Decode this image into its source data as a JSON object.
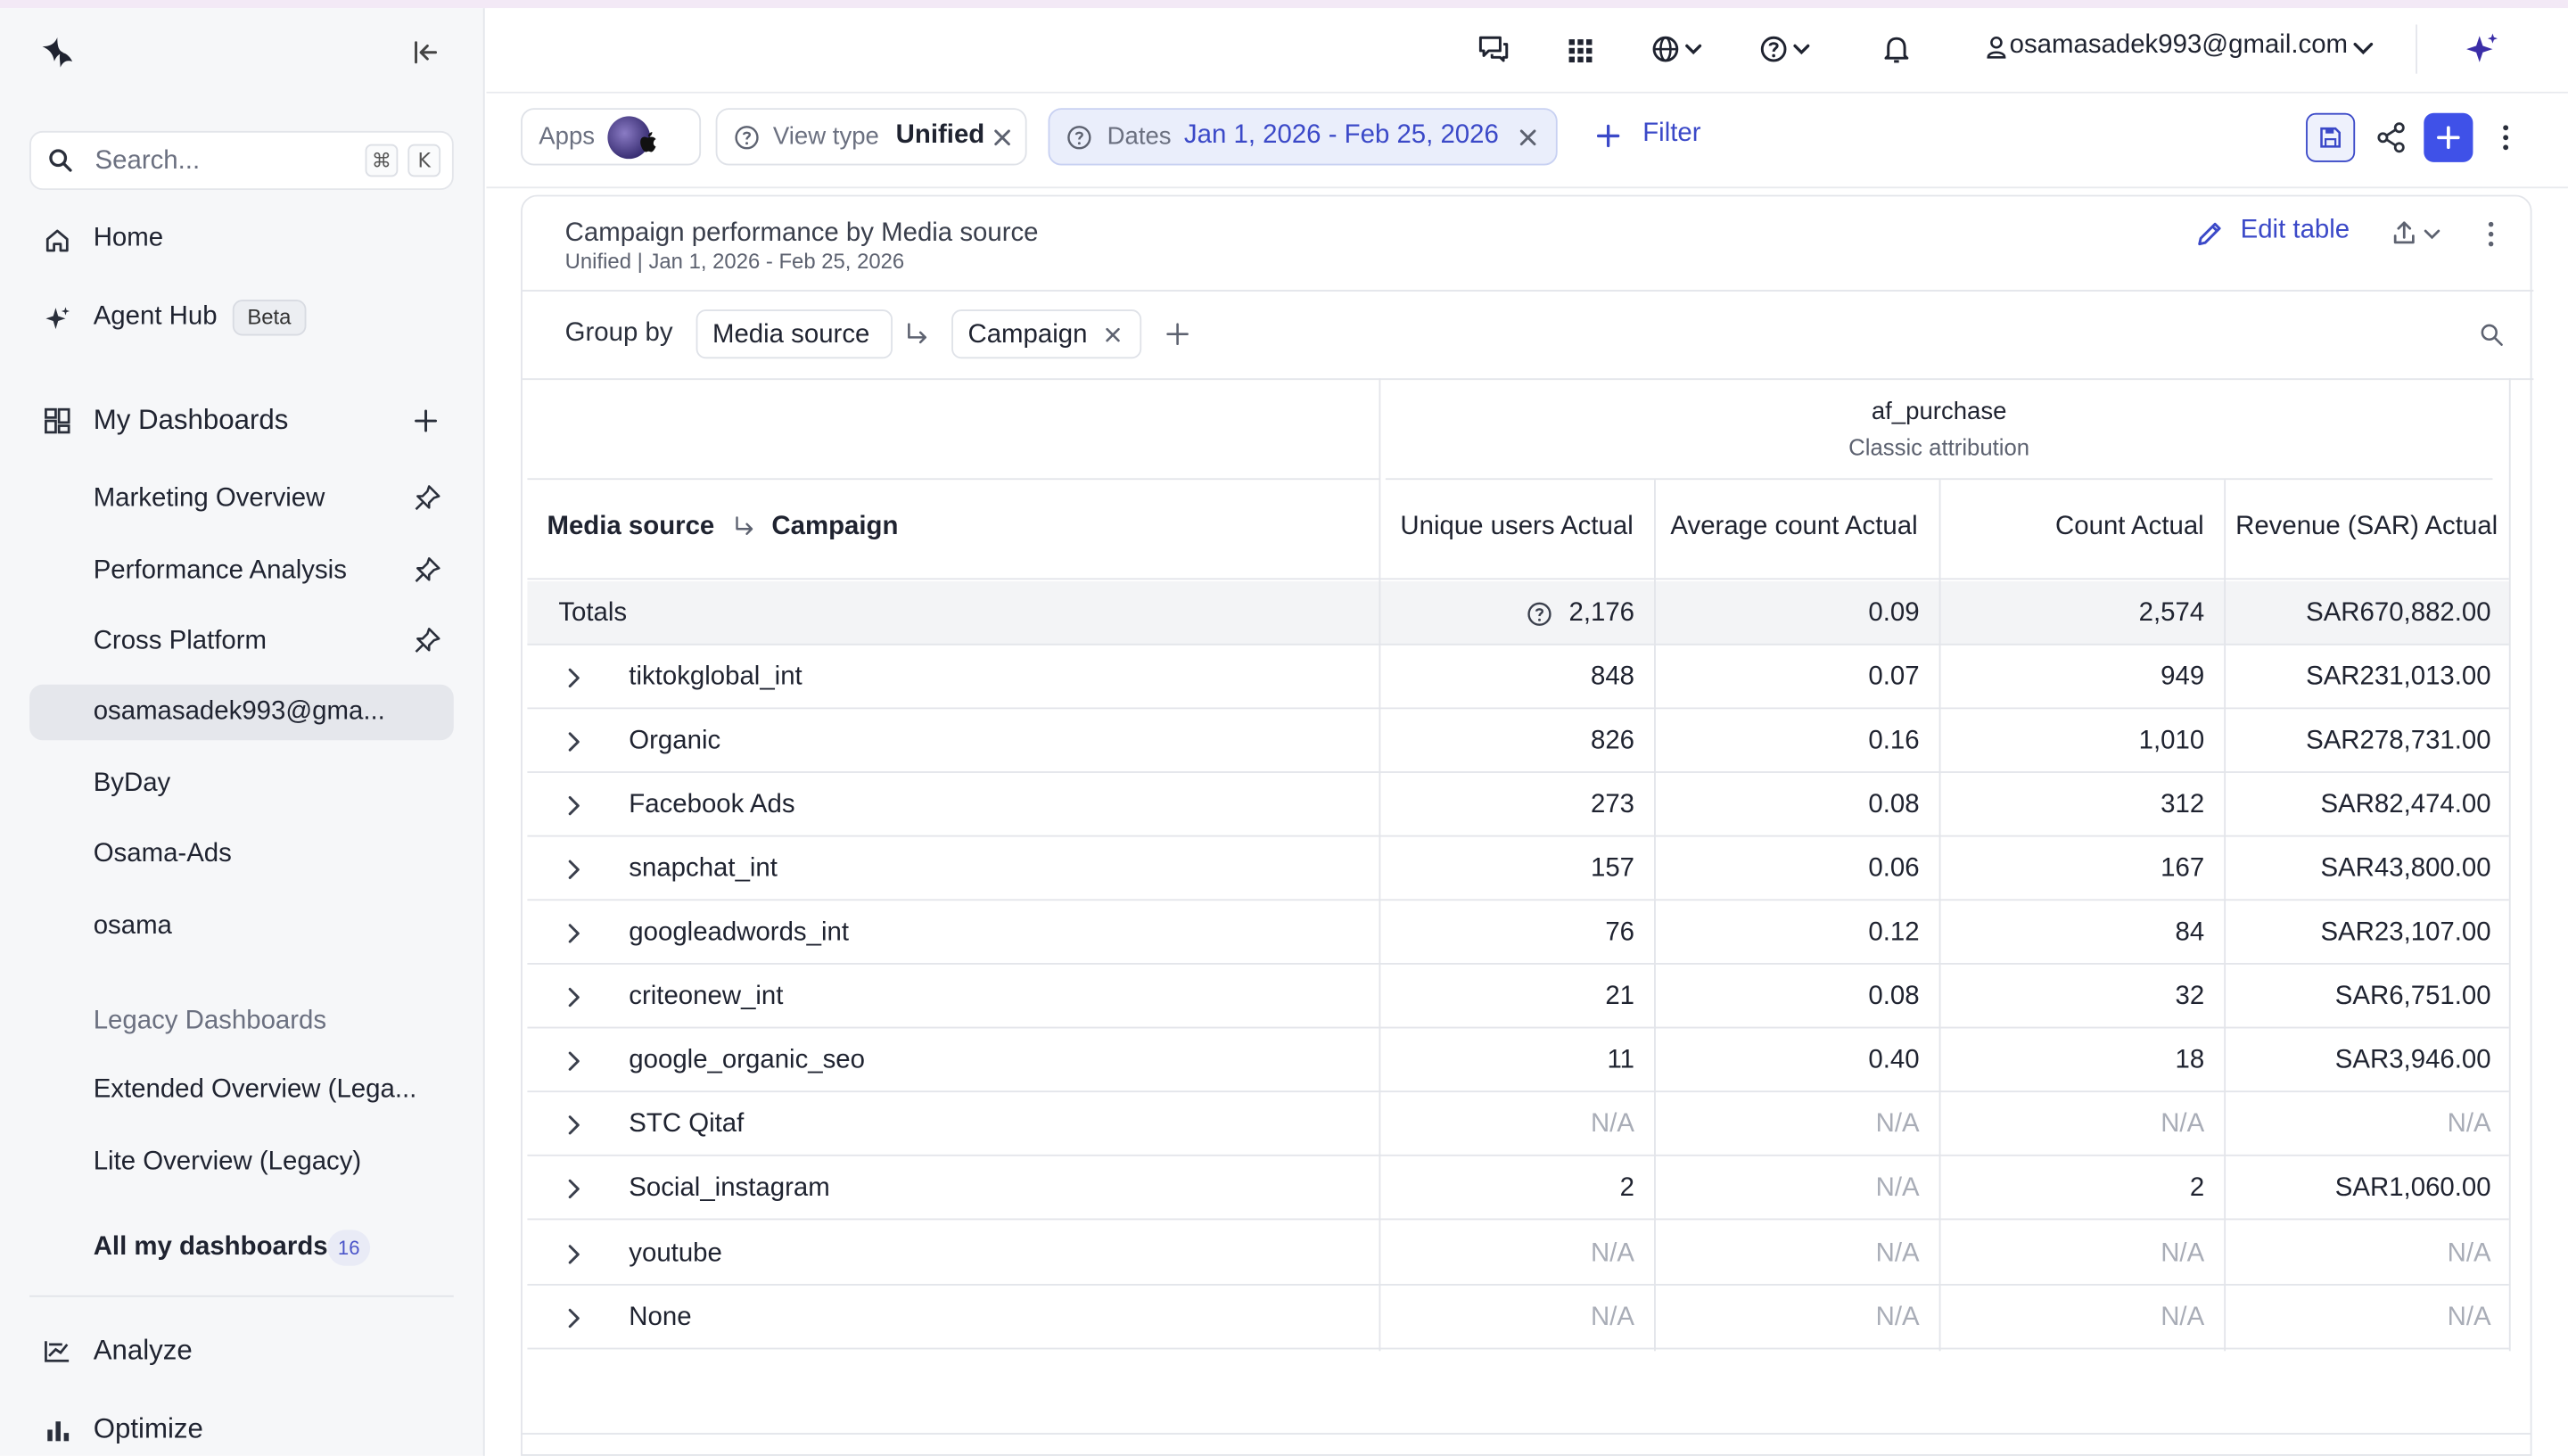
{
  "sidebar": {
    "search_placeholder": "Search...",
    "search_shortcut": [
      "⌘",
      "K"
    ],
    "home": "Home",
    "agent_hub": "Agent Hub",
    "agent_hub_badge": "Beta",
    "my_dashboards": "My Dashboards",
    "dashboards": [
      {
        "label": "Marketing Overview",
        "pinned": true
      },
      {
        "label": "Performance Analysis",
        "pinned": true
      },
      {
        "label": "Cross Platform",
        "pinned": true
      },
      {
        "label": "osamasadek993@gma...",
        "pinned": false,
        "active": true
      },
      {
        "label": "ByDay",
        "pinned": false
      },
      {
        "label": "Osama-Ads",
        "pinned": false
      },
      {
        "label": "osama",
        "pinned": false
      }
    ],
    "legacy_label": "Legacy Dashboards",
    "legacy": [
      "Extended Overview (Lega...",
      "Lite Overview (Legacy)"
    ],
    "all_dashboards": "All my dashboards",
    "all_dashboards_count": "16",
    "analyze": "Analyze",
    "optimize": "Optimize"
  },
  "topbar": {
    "user_email": "osamasadek993@gmail.com",
    "icons": [
      "chat-icon",
      "apps-grid-icon",
      "globe-icon",
      "help-icon",
      "bell-icon",
      "sparkle-icon"
    ]
  },
  "filters": {
    "apps_label": "Apps",
    "view_type_label": "View type",
    "view_type_value": "Unified",
    "dates_label": "Dates",
    "dates_value": "Jan 1, 2026 - Feb 25, 2026",
    "add_filter": "Filter"
  },
  "card": {
    "title": "Campaign performance by Media source",
    "subtitle": "Unified | Jan 1, 2026 - Feb 25, 2026",
    "edit_table": "Edit table",
    "group_by_label": "Group by",
    "group_by": [
      "Media source",
      "Campaign"
    ]
  },
  "table": {
    "dimension_header_1": "Media source",
    "dimension_header_2": "Campaign",
    "event_name": "af_purchase",
    "attribution": "Classic attribution",
    "columns": [
      "Unique users Actual",
      "Average count Actual",
      "Count Actual",
      "Revenue (SAR) Actual"
    ],
    "totals": {
      "label": "Totals",
      "values": [
        "2,176",
        "0.09",
        "2,574",
        "SAR670,882.00"
      ]
    },
    "rows": [
      {
        "name": "tiktokglobal_int",
        "values": [
          "848",
          "0.07",
          "949",
          "SAR231,013.00"
        ]
      },
      {
        "name": "Organic",
        "values": [
          "826",
          "0.16",
          "1,010",
          "SAR278,731.00"
        ]
      },
      {
        "name": "Facebook Ads",
        "values": [
          "273",
          "0.08",
          "312",
          "SAR82,474.00"
        ]
      },
      {
        "name": "snapchat_int",
        "values": [
          "157",
          "0.06",
          "167",
          "SAR43,800.00"
        ]
      },
      {
        "name": "googleadwords_int",
        "values": [
          "76",
          "0.12",
          "84",
          "SAR23,107.00"
        ]
      },
      {
        "name": "criteonew_int",
        "values": [
          "21",
          "0.08",
          "32",
          "SAR6,751.00"
        ]
      },
      {
        "name": "google_organic_seo",
        "values": [
          "11",
          "0.40",
          "18",
          "SAR3,946.00"
        ]
      },
      {
        "name": "STC Qitaf",
        "values": [
          "N/A",
          "N/A",
          "N/A",
          "N/A"
        ]
      },
      {
        "name": "Social_instagram",
        "values": [
          "2",
          "N/A",
          "2",
          "SAR1,060.00"
        ]
      },
      {
        "name": "youtube",
        "values": [
          "N/A",
          "N/A",
          "N/A",
          "N/A"
        ]
      },
      {
        "name": "None",
        "values": [
          "N/A",
          "N/A",
          "N/A",
          "N/A"
        ]
      }
    ]
  },
  "colors": {
    "accent": "#3b49c8",
    "primary_button": "#3f51e8",
    "na_text": "#a9adb7",
    "sidebar_bg": "#f6f7f9"
  }
}
